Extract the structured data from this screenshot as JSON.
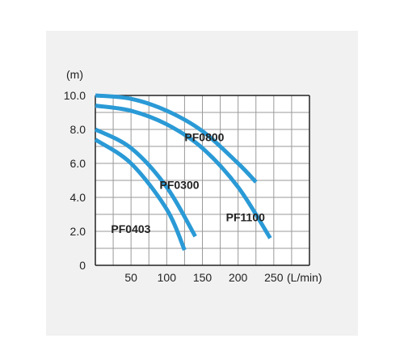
{
  "chart_data": {
    "type": "line",
    "title": "",
    "xlabel": "(L/min)",
    "ylabel": "(m)",
    "xlim": [
      0,
      300
    ],
    "ylim": [
      0,
      10.0
    ],
    "x_ticks": [
      "50",
      "100",
      "150",
      "200",
      "250"
    ],
    "y_ticks": [
      "0",
      "2.0",
      "4.0",
      "6.0",
      "8.0",
      "10.0"
    ],
    "grid": true,
    "line_color": "#2a9ad6",
    "series": [
      {
        "name": "PF0800",
        "x": [
          0,
          50,
          100,
          150,
          200,
          225
        ],
        "y": [
          10.0,
          9.8,
          9.1,
          7.9,
          6.0,
          4.9
        ]
      },
      {
        "name": "PF1100",
        "x": [
          0,
          50,
          100,
          150,
          200,
          245
        ],
        "y": [
          9.4,
          9.1,
          8.3,
          6.9,
          4.6,
          1.6
        ]
      },
      {
        "name": "PF0300",
        "x": [
          0,
          50,
          100,
          140
        ],
        "y": [
          8.0,
          6.9,
          4.6,
          1.7
        ]
      },
      {
        "name": "PF0403",
        "x": [
          0,
          50,
          100,
          125
        ],
        "y": [
          7.4,
          6.0,
          3.3,
          0.9
        ]
      }
    ]
  }
}
